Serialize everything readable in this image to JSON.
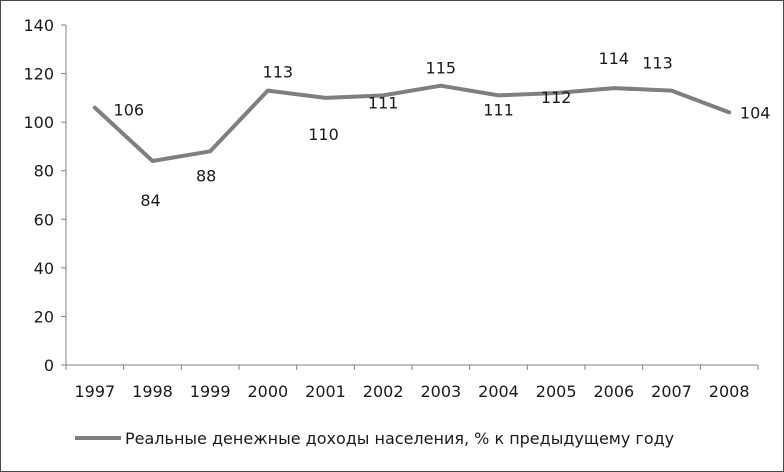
{
  "chart_data": {
    "type": "line",
    "categories": [
      "1997",
      "1998",
      "1999",
      "2000",
      "2001",
      "2002",
      "2003",
      "2004",
      "2005",
      "2006",
      "2007",
      "2008"
    ],
    "series": [
      {
        "name": "Реальные денежные доходы населения, % к предыдущему году",
        "values": [
          106,
          84,
          88,
          113,
          110,
          111,
          115,
          111,
          112,
          114,
          113,
          104
        ],
        "labels": [
          "106",
          "84",
          "88",
          "113",
          "110",
          "111",
          "115",
          "111",
          "112",
          "114",
          "113",
          "104"
        ],
        "color": "#7f7f7f"
      }
    ],
    "ylim": [
      0,
      140
    ],
    "yticks": [
      0,
      20,
      40,
      60,
      80,
      100,
      120,
      140
    ],
    "title": "",
    "xlabel": "",
    "ylabel": "",
    "grid": false,
    "legend": "bottom"
  }
}
